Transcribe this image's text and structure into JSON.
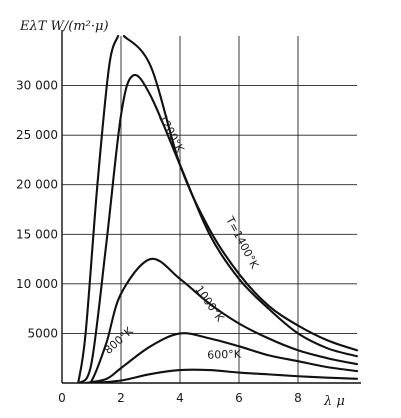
{
  "chart_data": {
    "type": "line",
    "title": "",
    "ylabel": "EλT W/(m²·μ)",
    "xlabel": "λ μ",
    "xlim": [
      0,
      10
    ],
    "ylim": [
      0,
      35000
    ],
    "x_ticks": [
      0,
      2,
      4,
      6,
      8
    ],
    "x_tick_labels": [
      "0",
      "2",
      "4",
      "6",
      "8"
    ],
    "y_ticks": [
      5000,
      10000,
      15000,
      20000,
      25000,
      30000
    ],
    "y_tick_labels": [
      "5000",
      "10 000",
      "15 000",
      "20 000",
      "25 000",
      "30 000"
    ],
    "grid": true,
    "legend": "none",
    "series": [
      {
        "label": "600°K",
        "x": [
          1,
          2,
          3,
          4,
          5,
          6,
          7,
          8,
          9,
          10
        ],
        "y": [
          0,
          250,
          900,
          1300,
          1300,
          1050,
          870,
          680,
          540,
          420
        ]
      },
      {
        "label": "800°K",
        "x": [
          0.8,
          1.5,
          2,
          3,
          4,
          5,
          6,
          7,
          8,
          9,
          10
        ],
        "y": [
          0,
          400,
          1500,
          3700,
          5000,
          4500,
          3700,
          2800,
          2200,
          1600,
          1200
        ]
      },
      {
        "label": "1000°K",
        "x": [
          0.7,
          1,
          1.5,
          2,
          3,
          4,
          5,
          6,
          7,
          8,
          9,
          10
        ],
        "y": [
          0,
          200,
          4000,
          9000,
          12500,
          10500,
          8000,
          6000,
          4500,
          3300,
          2500,
          1900
        ]
      },
      {
        "label": "1200°K",
        "x": [
          0.6,
          1,
          1.5,
          2,
          2.4,
          3,
          4,
          5,
          6,
          7,
          8,
          9,
          10
        ],
        "y": [
          0,
          2000,
          14000,
          27000,
          31000,
          29000,
          22000,
          15000,
          10500,
          7500,
          5000,
          3500,
          2700
        ]
      },
      {
        "label": "T=1400°K",
        "x": [
          0.55,
          0.8,
          1.2,
          1.6,
          1.9
        ],
        "y": [
          0,
          5000,
          20000,
          32000,
          35000
        ]
      },
      {
        "label": "",
        "x": [
          2.1,
          3,
          4,
          5,
          6,
          7,
          8,
          9,
          10
        ],
        "y": [
          35000,
          32000,
          22000,
          15500,
          11000,
          7800,
          5800,
          4300,
          3300
        ]
      }
    ],
    "curve_labels": [
      {
        "text": "600°K",
        "x": 5.5,
        "y": 2500
      },
      {
        "text": "800°K",
        "x": 2.0,
        "y": 4000
      },
      {
        "text": "1000°K",
        "x": 4.9,
        "y": 7800
      },
      {
        "text": "1200°K",
        "x": 3.6,
        "y": 25000
      },
      {
        "text": "T=1400°K",
        "x": 6.0,
        "y": 14000
      }
    ]
  }
}
